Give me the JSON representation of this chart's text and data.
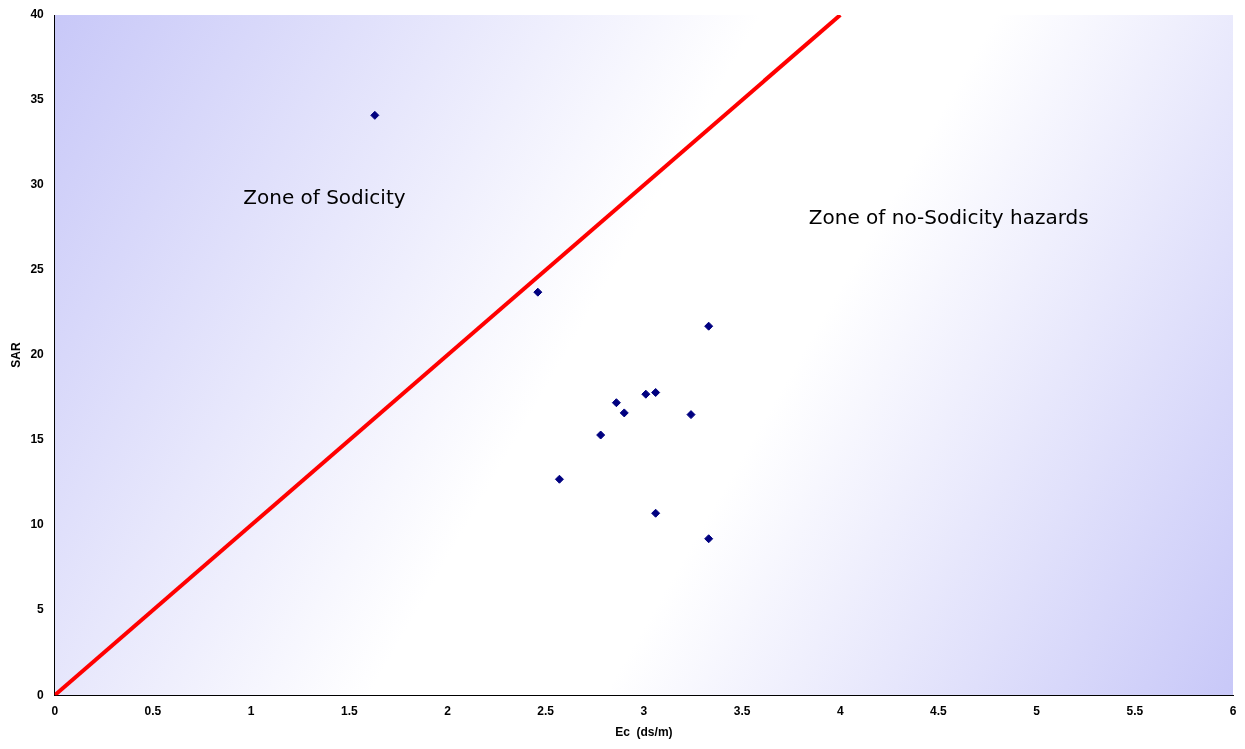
{
  "chart_data": {
    "type": "scatter",
    "xlabel": "Ec  (ds/m)",
    "ylabel": "SAR",
    "x": [
      1.63,
      2.46,
      3.33,
      3.06,
      3.01,
      2.86,
      2.9,
      3.24,
      2.78,
      2.57,
      3.06,
      3.33
    ],
    "series": [
      {
        "color": "#000080",
        "marker": "diamond",
        "values": [
          34.1,
          23.7,
          21.7,
          17.8,
          17.7,
          17.2,
          16.6,
          16.5,
          15.3,
          12.7,
          10.7,
          9.2
        ]
      },
      {
        "type": "line",
        "color": "#ff0000",
        "marker": "none",
        "x": [
          0,
          4
        ],
        "values": [
          0,
          40
        ]
      }
    ],
    "xlim": [
      0,
      6
    ],
    "xticks": [
      0,
      0.5,
      1,
      1.5,
      2,
      2.5,
      3,
      3.5,
      4,
      4.5,
      5,
      5.5,
      6
    ],
    "ylim": [
      0,
      40
    ],
    "yticks": [
      0,
      5,
      10,
      15,
      20,
      25,
      30,
      35,
      40
    ],
    "annotations": [
      "Zone of Sodicity",
      "Zone of no-Sodicity hazards"
    ],
    "grid": false,
    "legend": false
  }
}
